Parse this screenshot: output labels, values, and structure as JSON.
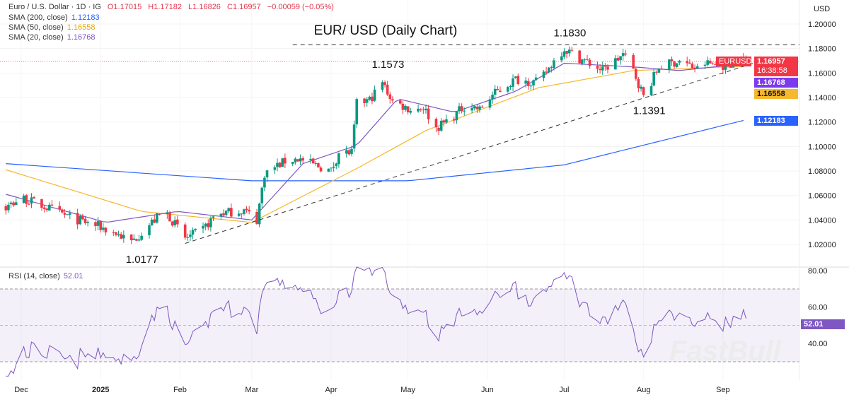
{
  "header": {
    "symbol": "Euro / U.S. Dollar · 1D · IG",
    "open": "O1.17015",
    "high": "H1.17182",
    "low": "L1.16826",
    "close": "C1.16957",
    "change": "−0.00059 (−0.05%)",
    "sma200_label": "SMA (200, close)",
    "sma200_value": "1.12183",
    "sma50_label": "SMA (50, close)",
    "sma50_value": "1.16558",
    "sma20_label": "SMA (20, close)",
    "sma20_value": "1.16768"
  },
  "currency": "USD",
  "watermark": "FastBull",
  "rsi_pane": {
    "label": "RSI (14, close)",
    "value": "52.01",
    "ticks": [
      "80.00",
      "60.00",
      "40.00"
    ],
    "upper_band": 70,
    "lower_band": 30
  },
  "price_tags": {
    "symbol": "EURUSD",
    "last": "1.16957",
    "countdown": "16:38:58",
    "sma20": "1.16768",
    "sma50": "1.16558",
    "sma200": "1.12183"
  },
  "colors": {
    "up": "#089981",
    "down": "#f23645",
    "sma200": "#2962ff",
    "sma50": "#f5b82e",
    "sma20": "#7e57c2",
    "rsi": "#7e57c2"
  },
  "chart_data": {
    "type": "candlestick",
    "title": "EUR/ USD (Daily Chart)",
    "ylim": [
      1.0,
      1.21
    ],
    "y_ticks": [
      "1.20000",
      "1.18000",
      "1.16000",
      "1.14000",
      "1.12000",
      "1.10000",
      "1.08000",
      "1.06000",
      "1.04000",
      "1.02000"
    ],
    "x_ticks": [
      {
        "label": "Dec",
        "date": "2024-12-01"
      },
      {
        "label": "2025",
        "date": "2025-01-01"
      },
      {
        "label": "Feb",
        "date": "2025-02-01"
      },
      {
        "label": "Mar",
        "date": "2025-03-01"
      },
      {
        "label": "Apr",
        "date": "2025-04-01"
      },
      {
        "label": "May",
        "date": "2025-05-01"
      },
      {
        "label": "Jun",
        "date": "2025-06-01"
      },
      {
        "label": "Jul",
        "date": "2025-07-01"
      },
      {
        "label": "Aug",
        "date": "2025-08-01"
      },
      {
        "label": "Sep",
        "date": "2025-09-01"
      }
    ],
    "close_path": [
      [
        "2024-11-01",
        1.085
      ],
      [
        "2024-11-15",
        1.055
      ],
      [
        "2024-11-25",
        1.05
      ],
      [
        "2024-12-01",
        1.058
      ],
      [
        "2024-12-09",
        1.052
      ],
      [
        "2024-12-20",
        1.042
      ],
      [
        "2024-12-31",
        1.035
      ],
      [
        "2025-01-08",
        1.028
      ],
      [
        "2025-01-13",
        1.022
      ],
      [
        "2025-01-17",
        1.03
      ],
      [
        "2025-01-26",
        1.048
      ],
      [
        "2025-02-03",
        1.025
      ],
      [
        "2025-02-10",
        1.032
      ],
      [
        "2025-02-15",
        1.045
      ],
      [
        "2025-02-26",
        1.048
      ],
      [
        "2025-03-03",
        1.04
      ],
      [
        "2025-03-06",
        1.078
      ],
      [
        "2025-03-14",
        1.088
      ],
      [
        "2025-03-19",
        1.09
      ],
      [
        "2025-04-01",
        1.08
      ],
      [
        "2025-04-04",
        1.095
      ],
      [
        "2025-04-09",
        1.095
      ],
      [
        "2025-04-11",
        1.135
      ],
      [
        "2025-04-16",
        1.138
      ],
      [
        "2025-04-21",
        1.152
      ],
      [
        "2025-04-25",
        1.137
      ],
      [
        "2025-05-02",
        1.13
      ],
      [
        "2025-05-07",
        1.132
      ],
      [
        "2025-05-12",
        1.115
      ],
      [
        "2025-05-19",
        1.125
      ],
      [
        "2025-05-24",
        1.135
      ],
      [
        "2025-05-29",
        1.13
      ],
      [
        "2025-06-03",
        1.142
      ],
      [
        "2025-06-12",
        1.155
      ],
      [
        "2025-06-21",
        1.152
      ],
      [
        "2025-06-27",
        1.17
      ],
      [
        "2025-07-01",
        1.18
      ],
      [
        "2025-07-07",
        1.172
      ],
      [
        "2025-07-16",
        1.162
      ],
      [
        "2025-07-24",
        1.175
      ],
      [
        "2025-07-28",
        1.162
      ],
      [
        "2025-08-01",
        1.141
      ],
      [
        "2025-08-07",
        1.165
      ],
      [
        "2025-08-15",
        1.17
      ],
      [
        "2025-08-22",
        1.163
      ],
      [
        "2025-08-25",
        1.168
      ],
      [
        "2025-09-02",
        1.166
      ],
      [
        "2025-09-08",
        1.172
      ],
      [
        "2025-09-10",
        1.1696
      ]
    ],
    "sma200": [
      [
        "2024-11-25",
        1.086
      ],
      [
        "2025-03-01",
        1.072
      ],
      [
        "2025-05-01",
        1.072
      ],
      [
        "2025-07-01",
        1.085
      ],
      [
        "2025-09-10",
        1.1218
      ]
    ],
    "sma50": [
      [
        "2024-11-25",
        1.081
      ],
      [
        "2025-01-17",
        1.047
      ],
      [
        "2025-03-01",
        1.038
      ],
      [
        "2025-04-11",
        1.082
      ],
      [
        "2025-05-08",
        1.113
      ],
      [
        "2025-06-21",
        1.148
      ],
      [
        "2025-07-28",
        1.162
      ],
      [
        "2025-09-10",
        1.1656
      ]
    ],
    "sma20": [
      [
        "2024-11-25",
        1.061
      ],
      [
        "2025-01-03",
        1.038
      ],
      [
        "2025-01-31",
        1.047
      ],
      [
        "2025-03-01",
        1.04
      ],
      [
        "2025-03-21",
        1.086
      ],
      [
        "2025-04-11",
        1.101
      ],
      [
        "2025-04-27",
        1.139
      ],
      [
        "2025-05-19",
        1.128
      ],
      [
        "2025-06-12",
        1.145
      ],
      [
        "2025-07-01",
        1.168
      ],
      [
        "2025-07-28",
        1.165
      ],
      [
        "2025-08-15",
        1.162
      ],
      [
        "2025-09-10",
        1.1677
      ]
    ],
    "annotations": [
      {
        "text": "1.1830",
        "date": "2025-07-01",
        "price": 1.183
      },
      {
        "text": "1.1573",
        "date": "2025-04-21",
        "price": 1.1573
      },
      {
        "text": "1.0177",
        "date": "2025-01-13",
        "price": 1.0177
      },
      {
        "text": "1.1391",
        "date": "2025-08-01",
        "price": 1.1391
      }
    ],
    "resistance_line": {
      "price": 1.183,
      "from": "2025-03-17"
    },
    "trendline": {
      "from": [
        "2025-02-03",
        1.0209
      ],
      "to": [
        "2025-09-16",
        1.17
      ]
    },
    "last_price": 1.16957
  }
}
